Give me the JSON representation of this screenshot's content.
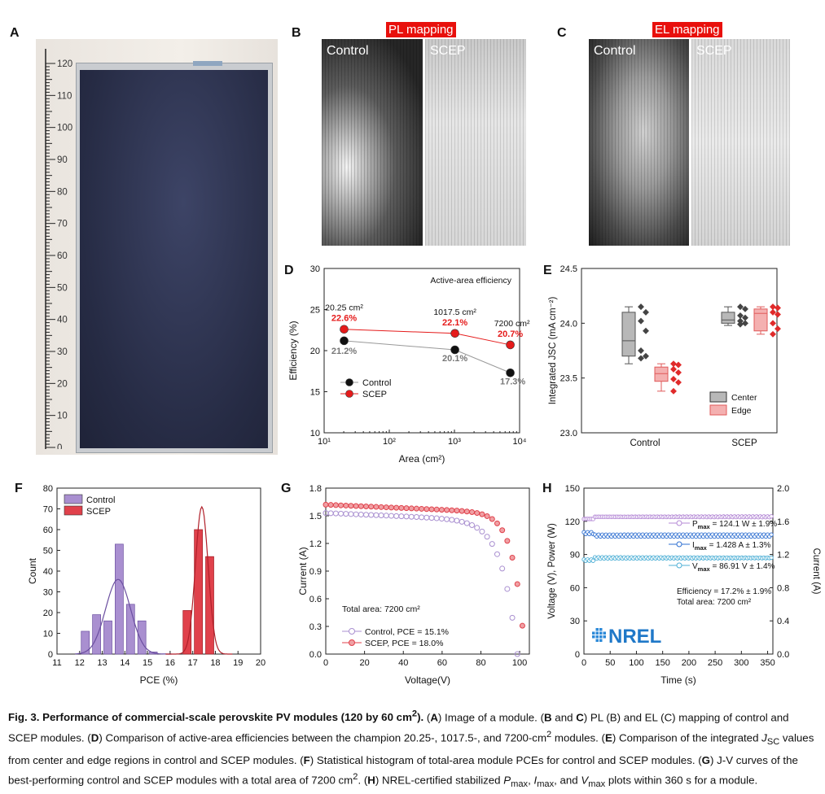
{
  "labels": {
    "A": "A",
    "B": "B",
    "C": "C",
    "D": "D",
    "E": "E",
    "F": "F",
    "G": "G",
    "H": "H"
  },
  "panelA": {
    "ruler_ticks": [
      "120",
      "110",
      "100",
      "90",
      "80",
      "70",
      "60",
      "50",
      "40",
      "30",
      "20",
      "10",
      "0"
    ]
  },
  "panelB": {
    "title": "PL mapping",
    "left": "Control",
    "right": "SCEP"
  },
  "panelC": {
    "title": "EL mapping",
    "left": "Control",
    "right": "SCEP"
  },
  "chart_data": [
    {
      "panel": "D",
      "type": "line",
      "annotation": "Active-area efficiency",
      "xlabel": "Area (cm²)",
      "ylabel": "Efficiency (%)",
      "xscale": "log",
      "xlim": [
        10,
        10000
      ],
      "ylim": [
        10,
        30
      ],
      "yticks": [
        "10",
        "15",
        "20",
        "25",
        "30"
      ],
      "xticks": [
        "10¹",
        "10²",
        "10³",
        "10⁴"
      ],
      "area_labels": [
        "20.25 cm²",
        "1017.5 cm²",
        "7200 cm²"
      ],
      "series": [
        {
          "name": "Control",
          "color": "#111111",
          "x": [
            20.25,
            1017.5,
            7200
          ],
          "y": [
            21.2,
            20.1,
            17.3
          ],
          "labels": [
            "21.2%",
            "20.1%",
            "17.3%"
          ]
        },
        {
          "name": "SCEP",
          "color": "#e51b1b",
          "x": [
            20.25,
            1017.5,
            7200
          ],
          "y": [
            22.6,
            22.1,
            20.7
          ],
          "labels": [
            "22.6%",
            "22.1%",
            "20.7%"
          ]
        }
      ]
    },
    {
      "panel": "E",
      "type": "box",
      "ylabel": "Integrated J_SC (mA cm⁻²)",
      "ylim": [
        23.0,
        24.5
      ],
      "yticks": [
        "23.0",
        "23.5",
        "24.0",
        "24.5"
      ],
      "categories": [
        "Control",
        "SCEP"
      ],
      "legend": [
        "Center",
        "Edge"
      ],
      "boxes": [
        {
          "cat": "Control",
          "group": "Center",
          "q1": 23.7,
          "median": 23.84,
          "q3": 24.1,
          "min": 23.63,
          "max": 24.15,
          "points": [
            24.15,
            24.1,
            24.02,
            23.93,
            23.75,
            23.7,
            23.68
          ]
        },
        {
          "cat": "Control",
          "group": "Edge",
          "q1": 23.47,
          "median": 23.54,
          "q3": 23.6,
          "min": 23.38,
          "max": 23.63,
          "points": [
            23.63,
            23.62,
            23.58,
            23.55,
            23.49,
            23.46,
            23.38
          ]
        },
        {
          "cat": "SCEP",
          "group": "Center",
          "q1": 24.0,
          "median": 24.03,
          "q3": 24.1,
          "min": 23.98,
          "max": 24.15,
          "points": [
            24.15,
            24.13,
            24.07,
            24.05,
            24.02,
            24.0,
            23.99
          ]
        },
        {
          "cat": "SCEP",
          "group": "Edge",
          "q1": 23.93,
          "median": 24.09,
          "q3": 24.13,
          "min": 23.9,
          "max": 24.15,
          "points": [
            24.15,
            24.14,
            24.1,
            24.08,
            24.0,
            23.95,
            23.9
          ]
        }
      ]
    },
    {
      "panel": "F",
      "type": "bar",
      "xlabel": "PCE (%)",
      "ylabel": "Count",
      "xlim": [
        11,
        20
      ],
      "ylim": [
        0,
        80
      ],
      "xticks": [
        "11",
        "12",
        "13",
        "14",
        "15",
        "16",
        "17",
        "18",
        "19",
        "20"
      ],
      "yticks": [
        "0",
        "10",
        "20",
        "30",
        "40",
        "50",
        "60",
        "70",
        "80"
      ],
      "series": [
        {
          "name": "Control",
          "color": "#a98fd0",
          "x": [
            12.25,
            12.75,
            13.25,
            13.75,
            14.25,
            14.75,
            15.25
          ],
          "values": [
            11,
            19,
            16,
            53,
            24,
            16,
            1
          ]
        },
        {
          "name": "SCEP",
          "color": "#e0414b",
          "x": [
            16.75,
            17.25,
            17.75
          ],
          "values": [
            21,
            60,
            47
          ]
        }
      ]
    },
    {
      "panel": "G",
      "type": "line",
      "xlabel": "Voltage(V)",
      "ylabel": "Current (A)",
      "xlim": [
        0,
        105
      ],
      "ylim": [
        0,
        1.8
      ],
      "xticks": [
        "0",
        "20",
        "40",
        "60",
        "80",
        "100"
      ],
      "yticks": [
        "0.0",
        "0.3",
        "0.6",
        "0.9",
        "1.2",
        "1.5",
        "1.8"
      ],
      "annotation": "Total area: 7200 cm²",
      "series": [
        {
          "name": "Control, PCE = 15.1%",
          "color": "#a98fd0",
          "voc": 99,
          "isc": 1.53
        },
        {
          "name": "SCEP, PCE = 18.0%",
          "color": "#e0414b",
          "voc": 103,
          "isc": 1.62
        }
      ]
    },
    {
      "panel": "H",
      "type": "line",
      "xlabel": "Time (s)",
      "ylabel_left": "Voltage (V), Power (W)",
      "ylabel_right": "Current (A)",
      "xlim": [
        0,
        360
      ],
      "ylim_left": [
        0,
        150
      ],
      "ylim_right": [
        0,
        2.0
      ],
      "xticks": [
        "0",
        "50",
        "100",
        "150",
        "200",
        "250",
        "300",
        "350"
      ],
      "yticks_left": [
        "0",
        "30",
        "60",
        "90",
        "120",
        "150"
      ],
      "yticks_right": [
        "0.0",
        "0.4",
        "0.8",
        "1.2",
        "1.6",
        "2.0"
      ],
      "series": [
        {
          "name": "Pmax",
          "label": "= 124.1 W  ± 1.9%",
          "color": "#b58ad6",
          "mean": 124.1,
          "axis": "left"
        },
        {
          "name": "Imax",
          "label": "= 1.428 A  ± 1.3%",
          "color": "#2e6fd1",
          "mean": 1.428,
          "axis": "right"
        },
        {
          "name": "Vmax",
          "label": "= 86.91 V  ± 1.4%",
          "color": "#4fb0d6",
          "mean": 86.91,
          "axis": "left"
        }
      ],
      "notes": [
        "Efficiency = 17.2%  ± 1.9%",
        "Total area: 7200 cm²"
      ],
      "logo": "NREL"
    }
  ]
}
